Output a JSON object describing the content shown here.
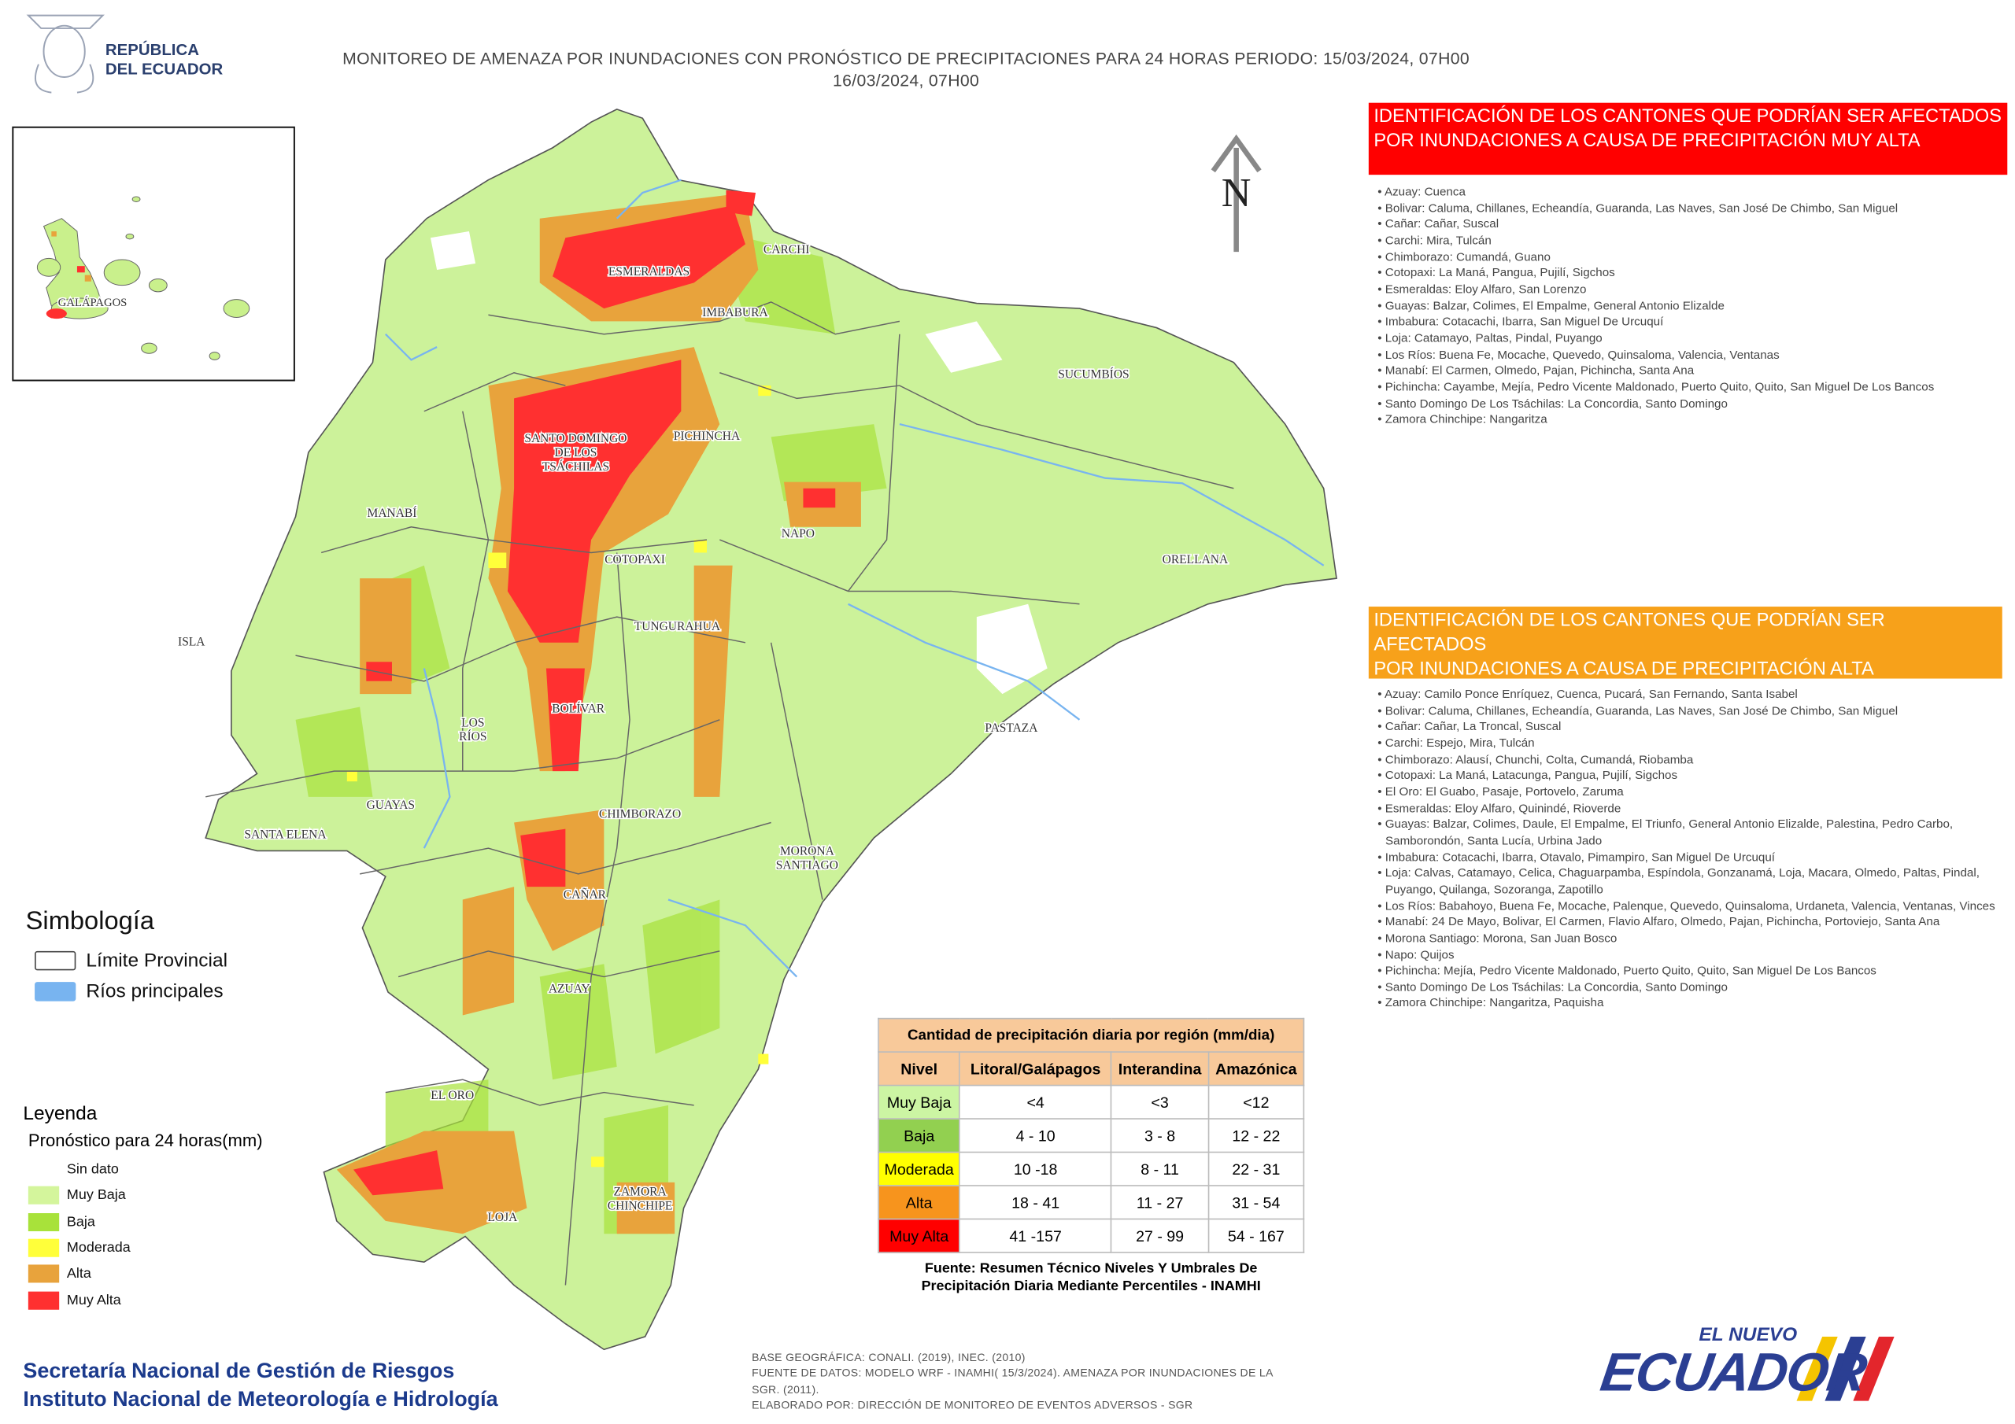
{
  "header": {
    "logo_lines": [
      "REPÚBLICA",
      "DEL ECUADOR"
    ],
    "title_lines": [
      "MONITOREO DE AMENAZA POR INUNDACIONES  CON PRONÓSTICO DE  PRECIPITACIONES PARA 24 HORAS  PERIODO: 15/03/2024, 07H00",
      "16/03/2024, 07H00"
    ]
  },
  "map": {
    "north": "N",
    "inset_label": "GALÁPAGOS",
    "province_labels": [
      [
        "ESMERALDAS"
      ],
      [
        "CARCHI"
      ],
      [
        "IMBABURA"
      ],
      [
        "SUCUMBÍOS"
      ],
      [
        "SANTO DOMINGO",
        "DE LOS",
        "TSÁCHILAS"
      ],
      [
        "PICHINCHA"
      ],
      [
        "MANABÍ"
      ],
      [
        "NAPO"
      ],
      [
        "ORELLANA"
      ],
      [
        "COTOPAXI"
      ],
      [
        "TUNGURAHUA"
      ],
      [
        "ISLA"
      ],
      [
        "BOLÍVAR"
      ],
      [
        "LOS",
        "RÍOS"
      ],
      [
        "PASTAZA"
      ],
      [
        "GUAYAS"
      ],
      [
        "SANTA ELENA"
      ],
      [
        "CHIMBORAZO"
      ],
      [
        "MORONA",
        "SANTIAGO"
      ],
      [
        "CAÑAR"
      ],
      [
        "AZUAY"
      ],
      [
        "EL ORO"
      ],
      [
        "LOJA"
      ],
      [
        "ZAMORA",
        "CHINCHIPE"
      ]
    ]
  },
  "panels": [
    {
      "color": "#ff0000",
      "title_lines": [
        "IDENTIFICACIÓN DE LOS CANTONES QUE PODRÍAN SER AFECTADOS",
        "POR INUNDACIONES  A CAUSA DE PRECIPITACIÓN MUY ALTA"
      ],
      "items": [
        "Azuay: Cuenca",
        "Bolivar: Caluma, Chillanes, Echeandía, Guaranda, Las Naves, San José De Chimbo, San Miguel",
        "Cañar: Cañar, Suscal",
        "Carchi: Mira, Tulcán",
        "Chimborazo: Cumandá, Guano",
        "Cotopaxi: La Maná, Pangua, Pujilí, Sigchos",
        "Esmeraldas: Eloy Alfaro, San Lorenzo",
        "Guayas: Balzar, Colimes, El Empalme, General Antonio Elizalde",
        "Imbabura: Cotacachi, Ibarra, San Miguel De Urcuquí",
        "Loja: Catamayo, Paltas, Pindal, Puyango",
        "Los Ríos: Buena Fe, Mocache, Quevedo, Quinsaloma, Valencia, Ventanas",
        "Manabí: El Carmen, Olmedo, Pajan, Pichincha, Santa Ana",
        "Pichincha: Cayambe, Mejía, Pedro Vicente Maldonado, Puerto Quito, Quito, San Miguel De Los Bancos",
        "Santo Domingo De Los Tsáchilas: La Concordia, Santo Domingo",
        "Zamora Chinchipe: Nangaritza"
      ]
    },
    {
      "color": "#f7a11a",
      "title_lines": [
        "IDENTIFICACIÓN DE LOS CANTONES QUE  PODRÍAN SER AFECTADOS",
        "POR INUNDACIONES  A CAUSA DE PRECIPITACIÓN  ALTA"
      ],
      "items": [
        "Azuay: Camilo Ponce Enríquez, Cuenca, Pucará, San Fernando, Santa Isabel",
        "Bolivar: Caluma, Chillanes, Echeandía, Guaranda, Las Naves, San José De Chimbo, San Miguel",
        "Cañar: Cañar, La Troncal, Suscal",
        "Carchi: Espejo, Mira, Tulcán",
        "Chimborazo: Alausí, Chunchi, Colta, Cumandá, Riobamba",
        "Cotopaxi: La Maná, Latacunga, Pangua, Pujilí, Sigchos",
        "El Oro: El Guabo, Pasaje, Portovelo, Zaruma",
        "Esmeraldas: Eloy Alfaro, Quinindé, Rioverde",
        "Guayas: Balzar, Colimes, Daule, El Empalme, El Triunfo, General Antonio Elizalde, Palestina, Pedro Carbo, Samborondón, Santa Lucía, Urbina Jado",
        "Imbabura: Cotacachi, Ibarra, Otavalo, Pimampiro, San Miguel De Urcuquí",
        "Loja: Calvas, Catamayo, Celica, Chaguarpamba, Espíndola, Gonzanamá, Loja, Macara, Olmedo, Paltas, Pindal, Puyango, Quilanga, Sozoranga, Zapotillo",
        "Los Ríos: Babahoyo, Buena Fe, Mocache, Palenque, Quevedo, Quinsaloma, Urdaneta, Valencia, Ventanas, Vinces",
        "Manabí: 24 De Mayo, Bolivar, El Carmen, Flavio Alfaro, Olmedo, Pajan, Pichincha, Portoviejo, Santa Ana",
        "Morona Santiago: Morona, San Juan Bosco",
        "Napo: Quijos",
        "Pichincha: Mejía, Pedro Vicente Maldonado, Puerto Quito, Quito, San Miguel De Los Bancos",
        "Santo Domingo De Los Tsáchilas: La Concordia, Santo Domingo",
        "Zamora Chinchipe: Nangaritza, Paquisha"
      ]
    }
  ],
  "symbology": {
    "title": "Simbología",
    "items": [
      {
        "label": "Límite Provincial",
        "color": "#ffffff"
      },
      {
        "label": "Ríos principales",
        "color": "#78b4f0"
      }
    ]
  },
  "legend": {
    "title": "Leyenda",
    "subtitle": "Pronóstico para 24 horas(mm)",
    "items": [
      {
        "label": "Sin dato",
        "color": "#ffffff"
      },
      {
        "label": "Muy Baja",
        "color": "#d4f59c"
      },
      {
        "label": "Baja",
        "color": "#a8e23a"
      },
      {
        "label": "Moderada",
        "color": "#ffff3a"
      },
      {
        "label": "Alta",
        "color": "#e8a33c"
      },
      {
        "label": "Muy Alta",
        "color": "#ff3030"
      }
    ]
  },
  "table": {
    "title": "Cantidad de precipitación diaria por región (mm/dia)",
    "header_color": "#f8c99a",
    "columns": [
      "Nivel",
      "Litoral/Galápagos",
      "Interandina",
      "Amazónica"
    ],
    "rows": [
      {
        "color": "#ccf5a3",
        "cells": [
          "Muy Baja",
          "<4",
          "<3",
          "<12"
        ]
      },
      {
        "color": "#92d050",
        "cells": [
          "Baja",
          "4 - 10",
          "3 - 8",
          "12 - 22"
        ]
      },
      {
        "color": "#ffff00",
        "cells": [
          "Moderada",
          "10 -18",
          "8 - 11",
          "22 - 31"
        ]
      },
      {
        "color": "#f7941d",
        "cells": [
          "Alta",
          "18 - 41",
          "11 - 27",
          "31 - 54"
        ]
      },
      {
        "color": "#ff0000",
        "cells": [
          "Muy Alta",
          "41 -157",
          "27 - 99",
          "54 - 167"
        ]
      }
    ],
    "source_lines": [
      "Fuente: Resumen Técnico Niveles Y Umbrales De",
      "Precipitación Diaria Mediante Percentiles - INAMHI"
    ]
  },
  "footer": {
    "org_lines": [
      "Secretaría Nacional de Gestión de Riesgos",
      "Instituto Nacional de Meteorología e Hidrología"
    ],
    "source_lines": [
      "BASE GEOGRÁFICA: CONALI. (2019), INEC. (2010)",
      "FUENTE DE DATOS: MODELO WRF - INAMHI( 15/3/2024).  AMENAZA POR INUNDACIONES DE LA",
      "SGR. (2011).",
      "ELABORADO POR: DIRECCIÓN DE MONITOREO DE EVENTOS ADVERSOS - SGR"
    ],
    "brand": [
      "EL NUEVO",
      "ECUADOR"
    ]
  }
}
